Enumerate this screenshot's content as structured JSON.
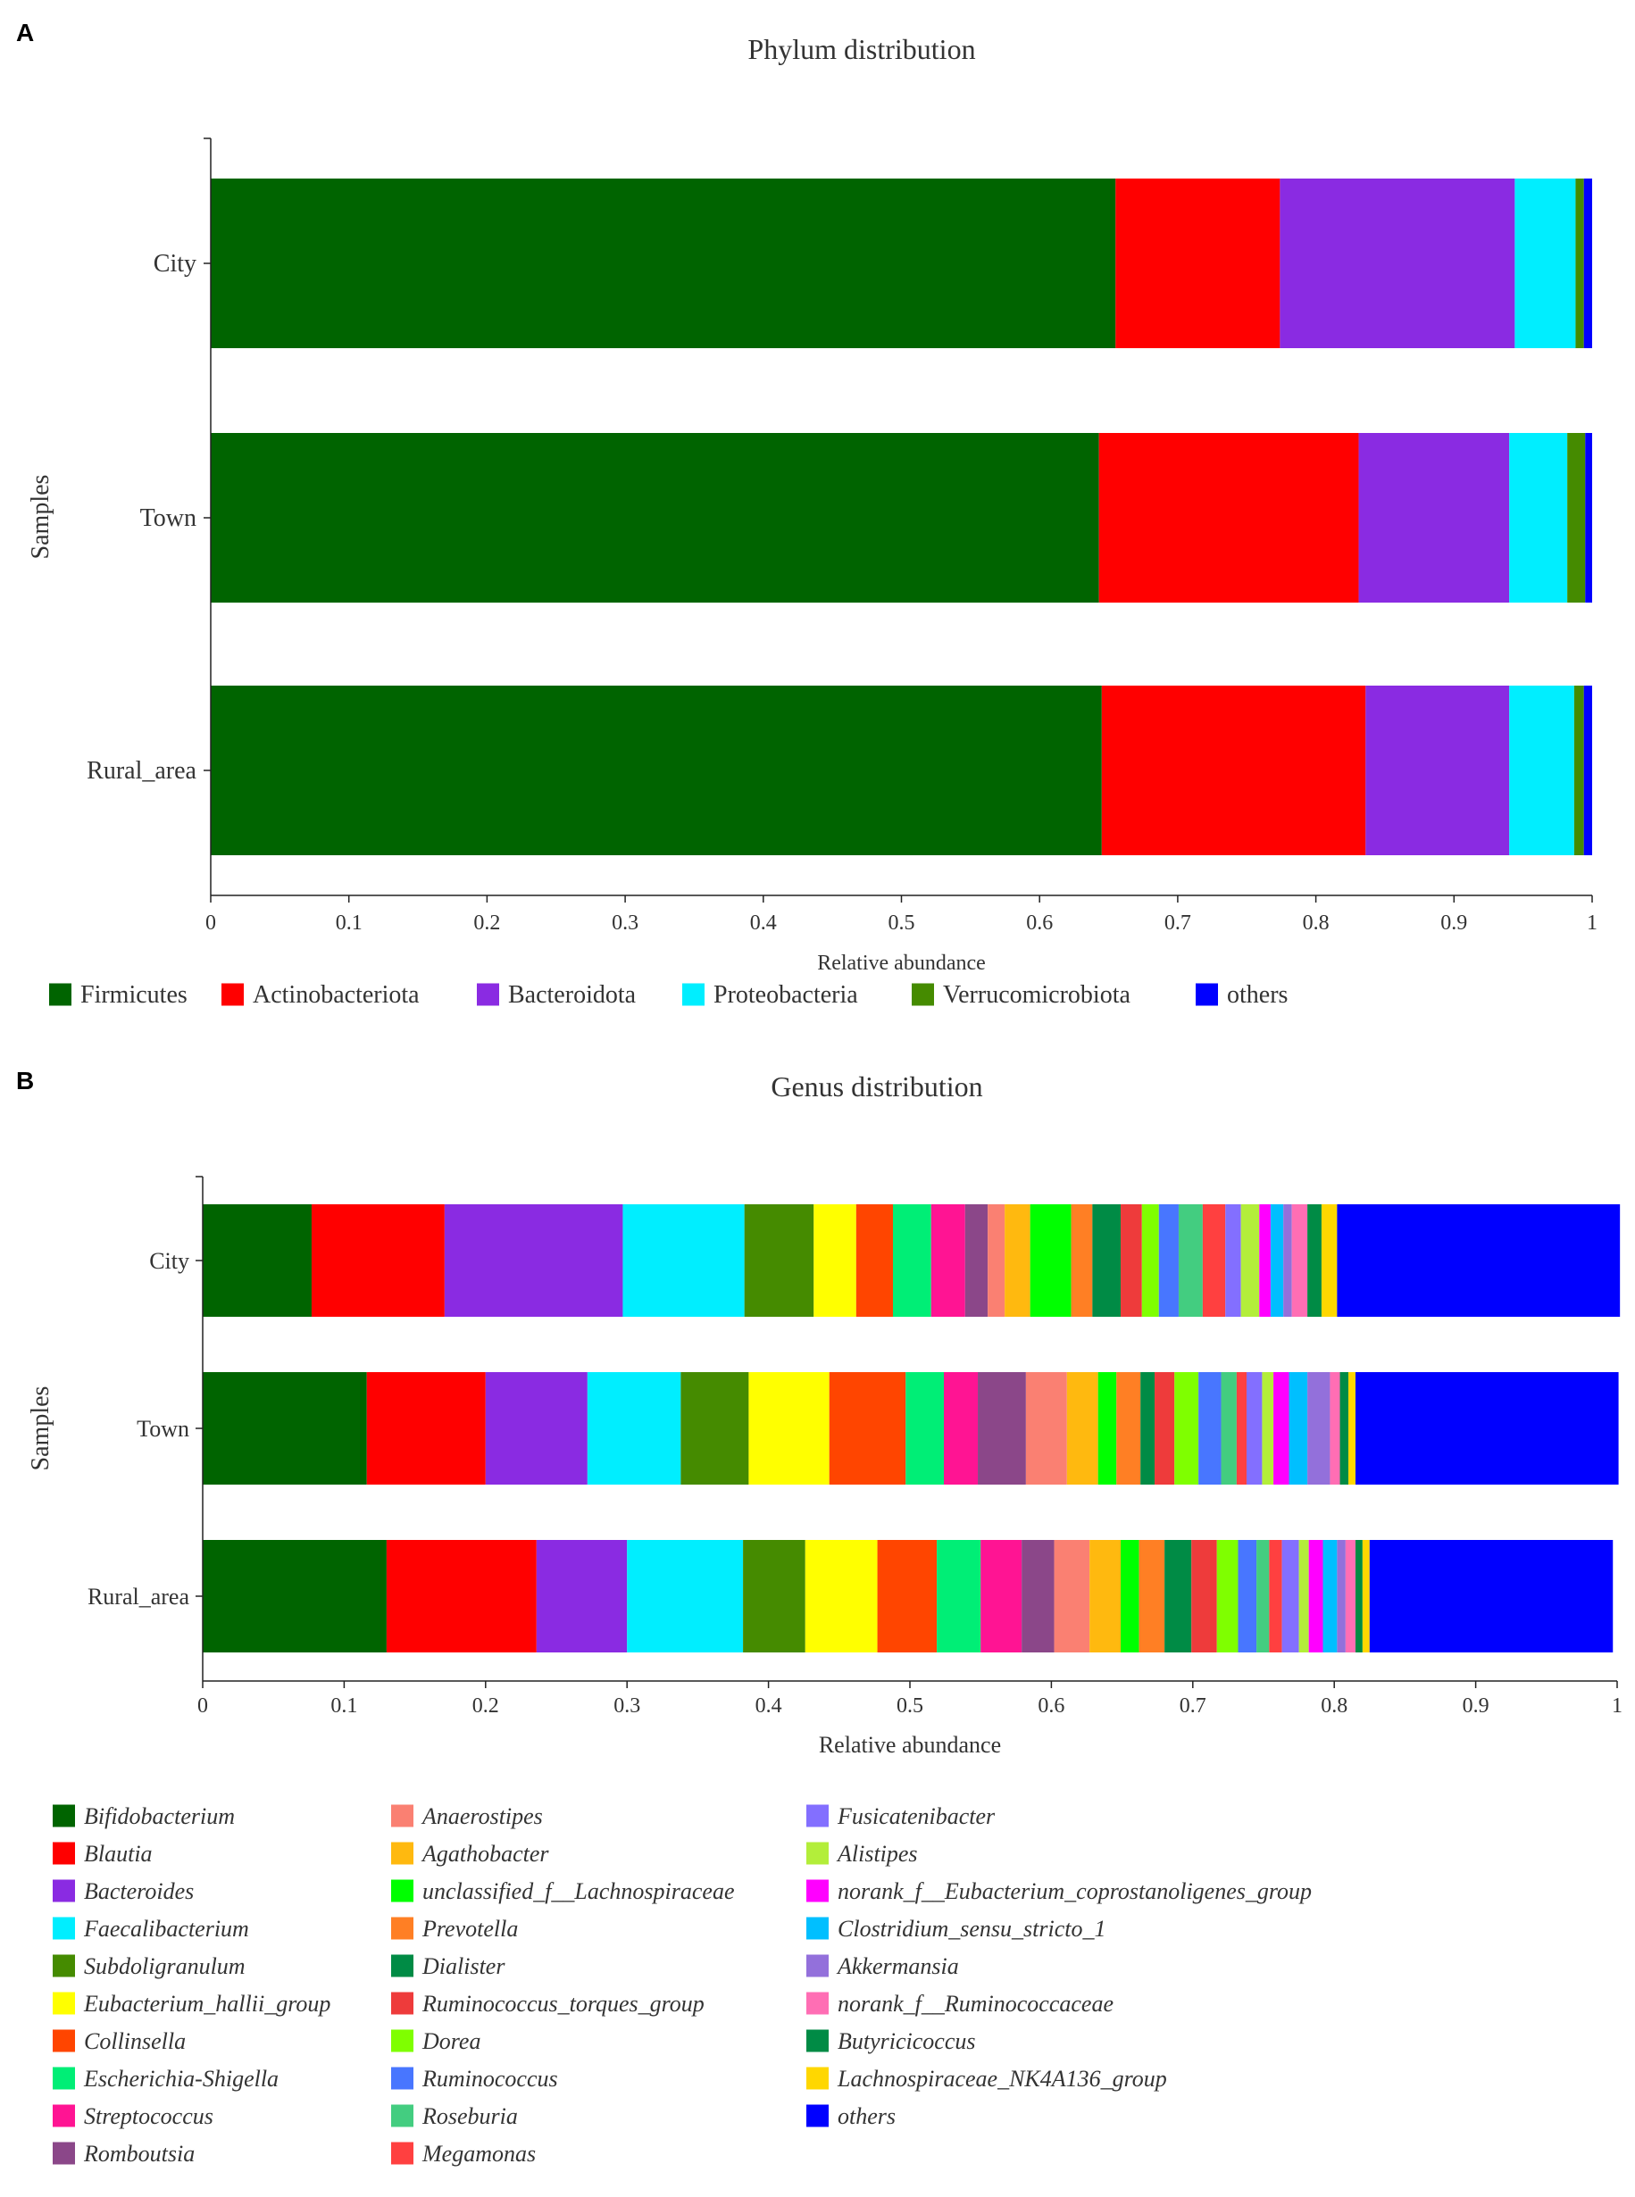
{
  "chart_data": [
    {
      "panel": "A",
      "type": "bar",
      "orientation": "horizontal",
      "stacked": true,
      "title": "Phylum distribution",
      "xlabel": "Relative abundance",
      "ylabel": "Samples",
      "xlim": [
        0,
        1
      ],
      "xticks": [
        "0",
        "0.1",
        "0.2",
        "0.3",
        "0.4",
        "0.5",
        "0.6",
        "0.7",
        "0.8",
        "0.9",
        "1"
      ],
      "categories": [
        "City",
        "Town",
        "Rural_area"
      ],
      "legend": "bottom",
      "series": [
        {
          "name": "Firmicutes",
          "color": "#006400",
          "values": [
            0.655,
            0.643,
            0.645
          ]
        },
        {
          "name": "Actinobacteriota",
          "color": "#ff0000",
          "values": [
            0.119,
            0.188,
            0.191
          ]
        },
        {
          "name": "Bacteroidota",
          "color": "#8a2be2",
          "values": [
            0.17,
            0.109,
            0.104
          ]
        },
        {
          "name": "Proteobacteria",
          "color": "#00eeff",
          "values": [
            0.044,
            0.042,
            0.047
          ]
        },
        {
          "name": "Verrucomicrobiota",
          "color": "#458b00",
          "values": [
            0.006,
            0.013,
            0.007
          ]
        },
        {
          "name": "others",
          "color": "#0000ff",
          "values": [
            0.006,
            0.005,
            0.006
          ]
        }
      ]
    },
    {
      "panel": "B",
      "type": "bar",
      "orientation": "horizontal",
      "stacked": true,
      "title": "Genus distribution",
      "xlabel": "Relative abundance",
      "ylabel": "Samples",
      "xlim": [
        0,
        1
      ],
      "xticks": [
        "0",
        "0.1",
        "0.2",
        "0.3",
        "0.4",
        "0.5",
        "0.6",
        "0.7",
        "0.8",
        "0.9",
        "1"
      ],
      "categories": [
        "City",
        "Town",
        "Rural_area"
      ],
      "legend": "bottom",
      "series": [
        {
          "name": "Bifidobacterium",
          "color": "#006400",
          "values": [
            0.077,
            0.116,
            0.13
          ]
        },
        {
          "name": "Blautia",
          "color": "#ff0000",
          "values": [
            0.094,
            0.084,
            0.106
          ]
        },
        {
          "name": "Bacteroides",
          "color": "#8a2be2",
          "values": [
            0.126,
            0.072,
            0.064
          ]
        },
        {
          "name": "Faecalibacterium",
          "color": "#00eeff",
          "values": [
            0.086,
            0.066,
            0.082
          ]
        },
        {
          "name": "Subdoligranulum",
          "color": "#458b00",
          "values": [
            0.049,
            0.048,
            0.044
          ]
        },
        {
          "name": "Eubacterium_hallii_group",
          "color": "#ffff00",
          "values": [
            0.03,
            0.057,
            0.051
          ]
        },
        {
          "name": "Collinsella",
          "color": "#ff4500",
          "values": [
            0.026,
            0.054,
            0.042
          ]
        },
        {
          "name": "Escherichia-Shigella",
          "color": "#00ee76",
          "values": [
            0.027,
            0.027,
            0.031
          ]
        },
        {
          "name": "Streptococcus",
          "color": "#ff1493",
          "values": [
            0.024,
            0.024,
            0.029
          ]
        },
        {
          "name": "Romboutsia",
          "color": "#8b4789",
          "values": [
            0.016,
            0.034,
            0.023
          ]
        },
        {
          "name": "Anaerostipes",
          "color": "#fa8072",
          "values": [
            0.012,
            0.029,
            0.025
          ]
        },
        {
          "name": "Agathobacter",
          "color": "#ffb90f",
          "values": [
            0.018,
            0.022,
            0.022
          ]
        },
        {
          "name": "unclassified_f__Lachnospiraceae",
          "color": "#00ff00",
          "values": [
            0.029,
            0.013,
            0.013
          ]
        },
        {
          "name": "Prevotella",
          "color": "#ff7f24",
          "values": [
            0.015,
            0.017,
            0.018
          ]
        },
        {
          "name": "Dialister",
          "color": "#008b45",
          "values": [
            0.02,
            0.01,
            0.019
          ]
        },
        {
          "name": "Ruminococcus_torques_group",
          "color": "#ee3b3b",
          "values": [
            0.015,
            0.014,
            0.018
          ]
        },
        {
          "name": "Dorea",
          "color": "#7fff00",
          "values": [
            0.012,
            0.017,
            0.015
          ]
        },
        {
          "name": "Ruminococcus",
          "color": "#4876ff",
          "values": [
            0.014,
            0.016,
            0.013
          ]
        },
        {
          "name": "Roseburia",
          "color": "#43cd80",
          "values": [
            0.017,
            0.011,
            0.009
          ]
        },
        {
          "name": "Megamonas",
          "color": "#ff4040",
          "values": [
            0.016,
            0.007,
            0.009
          ]
        },
        {
          "name": "Fusicatenibacter",
          "color": "#836fff",
          "values": [
            0.011,
            0.011,
            0.012
          ]
        },
        {
          "name": "Alistipes",
          "color": "#b3ee3a",
          "values": [
            0.013,
            0.008,
            0.007
          ]
        },
        {
          "name": "norank_f__Eubacterium_coprostanoligenes_group",
          "color": "#ff00ff",
          "values": [
            0.008,
            0.011,
            0.01
          ]
        },
        {
          "name": "Clostridium_sensu_stricto_1",
          "color": "#00bfff",
          "values": [
            0.009,
            0.013,
            0.01
          ]
        },
        {
          "name": "Akkermansia",
          "color": "#9370db",
          "values": [
            0.006,
            0.016,
            0.006
          ]
        },
        {
          "name": "norank_f__Ruminococcaceae",
          "color": "#ff6eb4",
          "values": [
            0.011,
            0.007,
            0.007
          ]
        },
        {
          "name": "Butyricicoccus",
          "color": "#008b45",
          "values": [
            0.01,
            0.006,
            0.005
          ]
        },
        {
          "name": "Lachnospiraceae_NK4A136_group",
          "color": "#ffd700",
          "values": [
            0.011,
            0.005,
            0.005
          ]
        },
        {
          "name": "others",
          "color": "#0000ff",
          "values": [
            0.2,
            0.186,
            0.172
          ]
        }
      ]
    }
  ]
}
